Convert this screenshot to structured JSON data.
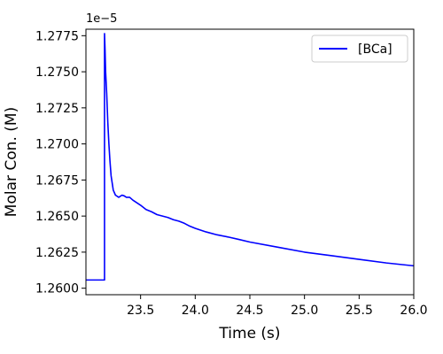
{
  "chart_data": {
    "type": "line",
    "xlabel": "Time (s)",
    "ylabel": "Molar Con. (M)",
    "y_offset_label": "1e−5",
    "xlim": [
      23.0,
      26.0
    ],
    "ylim": [
      1.25955,
      1.27795
    ],
    "xticks": [
      23.5,
      24.0,
      24.5,
      25.0,
      25.5,
      26.0
    ],
    "xtick_labels": [
      "23.5",
      "24.0",
      "24.5",
      "25.0",
      "25.5",
      "26.0"
    ],
    "yticks": [
      1.26,
      1.2625,
      1.265,
      1.2675,
      1.27,
      1.2725,
      1.275,
      1.2775
    ],
    "ytick_labels": [
      "1.2600",
      "1.2625",
      "1.2650",
      "1.2675",
      "1.2700",
      "1.2725",
      "1.2750",
      "1.2775"
    ],
    "grid": false,
    "legend_position": "top-right",
    "series": [
      {
        "name": "[BCa]",
        "color": "#0000ff",
        "x": [
          23.0,
          23.17,
          23.17,
          23.175,
          23.18,
          23.19,
          23.2,
          23.21,
          23.22,
          23.23,
          23.25,
          23.27,
          23.3,
          23.33,
          23.35,
          23.37,
          23.4,
          23.43,
          23.45,
          23.5,
          23.55,
          23.6,
          23.65,
          23.7,
          23.75,
          23.8,
          23.85,
          23.9,
          23.95,
          24.0,
          24.1,
          24.2,
          24.3,
          24.4,
          24.5,
          24.75,
          25.0,
          25.25,
          25.5,
          25.75,
          26.0
        ],
        "y": [
          1.26057,
          1.26057,
          1.27765,
          1.2765,
          1.275,
          1.2735,
          1.2715,
          1.27,
          1.2688,
          1.2678,
          1.2668,
          1.26645,
          1.2663,
          1.26645,
          1.2664,
          1.2663,
          1.2663,
          1.2661,
          1.266,
          1.26575,
          1.26545,
          1.2653,
          1.2651,
          1.265,
          1.2649,
          1.26475,
          1.26465,
          1.2645,
          1.2643,
          1.26415,
          1.2639,
          1.2637,
          1.26355,
          1.26338,
          1.2632,
          1.26285,
          1.2625,
          1.26225,
          1.262,
          1.26175,
          1.26155
        ]
      }
    ]
  }
}
